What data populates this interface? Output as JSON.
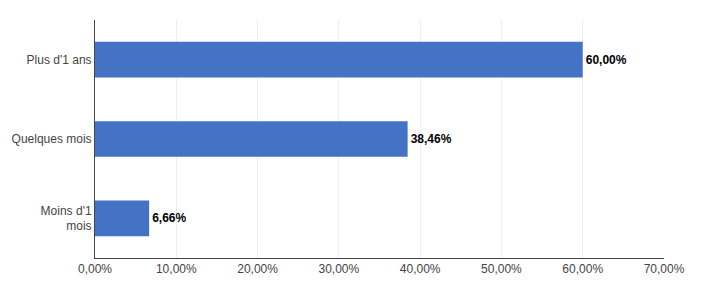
{
  "chart_data": {
    "type": "bar",
    "orientation": "horizontal",
    "categories": [
      "Plus d'1 ans",
      "Quelques mois",
      "Moins d'1\nmois"
    ],
    "values": [
      60.0,
      38.46,
      6.66
    ],
    "value_labels": [
      "60,00%",
      "38,46%",
      "6,66%"
    ],
    "data_labels": true,
    "color": "#4472C4",
    "xlim": [
      0,
      70
    ],
    "xticks": [
      {
        "value": 0,
        "label": "0,00%"
      },
      {
        "value": 10,
        "label": "10,00%"
      },
      {
        "value": 20,
        "label": "20,00%"
      },
      {
        "value": 30,
        "label": "30,00%"
      },
      {
        "value": 40,
        "label": "40,00%"
      },
      {
        "value": 50,
        "label": "50,00%"
      },
      {
        "value": 60,
        "label": "60,00%"
      },
      {
        "value": 70,
        "label": "70,00%"
      }
    ],
    "grid": true
  }
}
